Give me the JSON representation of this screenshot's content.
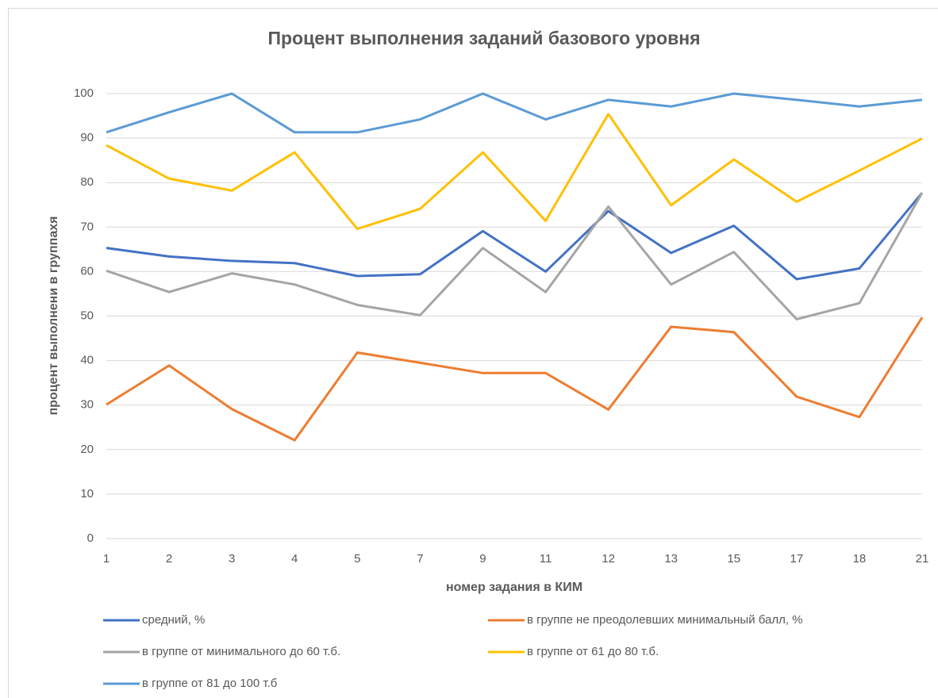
{
  "chart_data": {
    "type": "line",
    "title": "Процент выполнения заданий базового уровня",
    "x_label": "номер задания в КИМ",
    "y_label": "процент выполнени в группахя",
    "categories": [
      "1",
      "2",
      "3",
      "4",
      "5",
      "7",
      "9",
      "11",
      "12",
      "13",
      "15",
      "17",
      "18",
      "21"
    ],
    "ylim": [
      0,
      100
    ],
    "yticks": [
      0,
      10,
      20,
      30,
      40,
      50,
      60,
      70,
      80,
      90,
      100
    ],
    "grid": true,
    "series": [
      {
        "name": "средний, %",
        "color": "#4472c4",
        "values": [
          65.3,
          63.4,
          62.4,
          61.9,
          59.0,
          59.4,
          69.1,
          60.0,
          73.6,
          64.2,
          70.3,
          58.3,
          60.7,
          77.7
        ]
      },
      {
        "name": "в группе не преодолевших минимальный балл, %",
        "color": "#ed7d31",
        "values": [
          30.1,
          38.9,
          29.1,
          22.1,
          41.8,
          39.5,
          37.2,
          37.2,
          29.0,
          47.6,
          46.4,
          31.9,
          27.3,
          49.7
        ]
      },
      {
        "name": "в группе от минимального до 60 т.б.",
        "color": "#a5a5a5",
        "values": [
          60.2,
          55.4,
          59.6,
          57.1,
          52.5,
          50.2,
          65.3,
          55.4,
          74.6,
          57.1,
          64.4,
          49.3,
          52.9,
          77.7
        ]
      },
      {
        "name": "в группе от 61 до 80 т.б.",
        "color": "#ffc000",
        "values": [
          88.4,
          80.9,
          78.2,
          86.8,
          69.6,
          74.1,
          86.8,
          71.4,
          95.4,
          74.9,
          85.2,
          75.7,
          82.7,
          89.9
        ]
      },
      {
        "name": "в группе от 81 до 100 т.б",
        "color": "#5b9bd5",
        "values": [
          91.3,
          95.8,
          100,
          91.3,
          91.3,
          94.2,
          100,
          94.2,
          98.6,
          97.1,
          100,
          98.6,
          97.1,
          98.6
        ]
      }
    ]
  }
}
